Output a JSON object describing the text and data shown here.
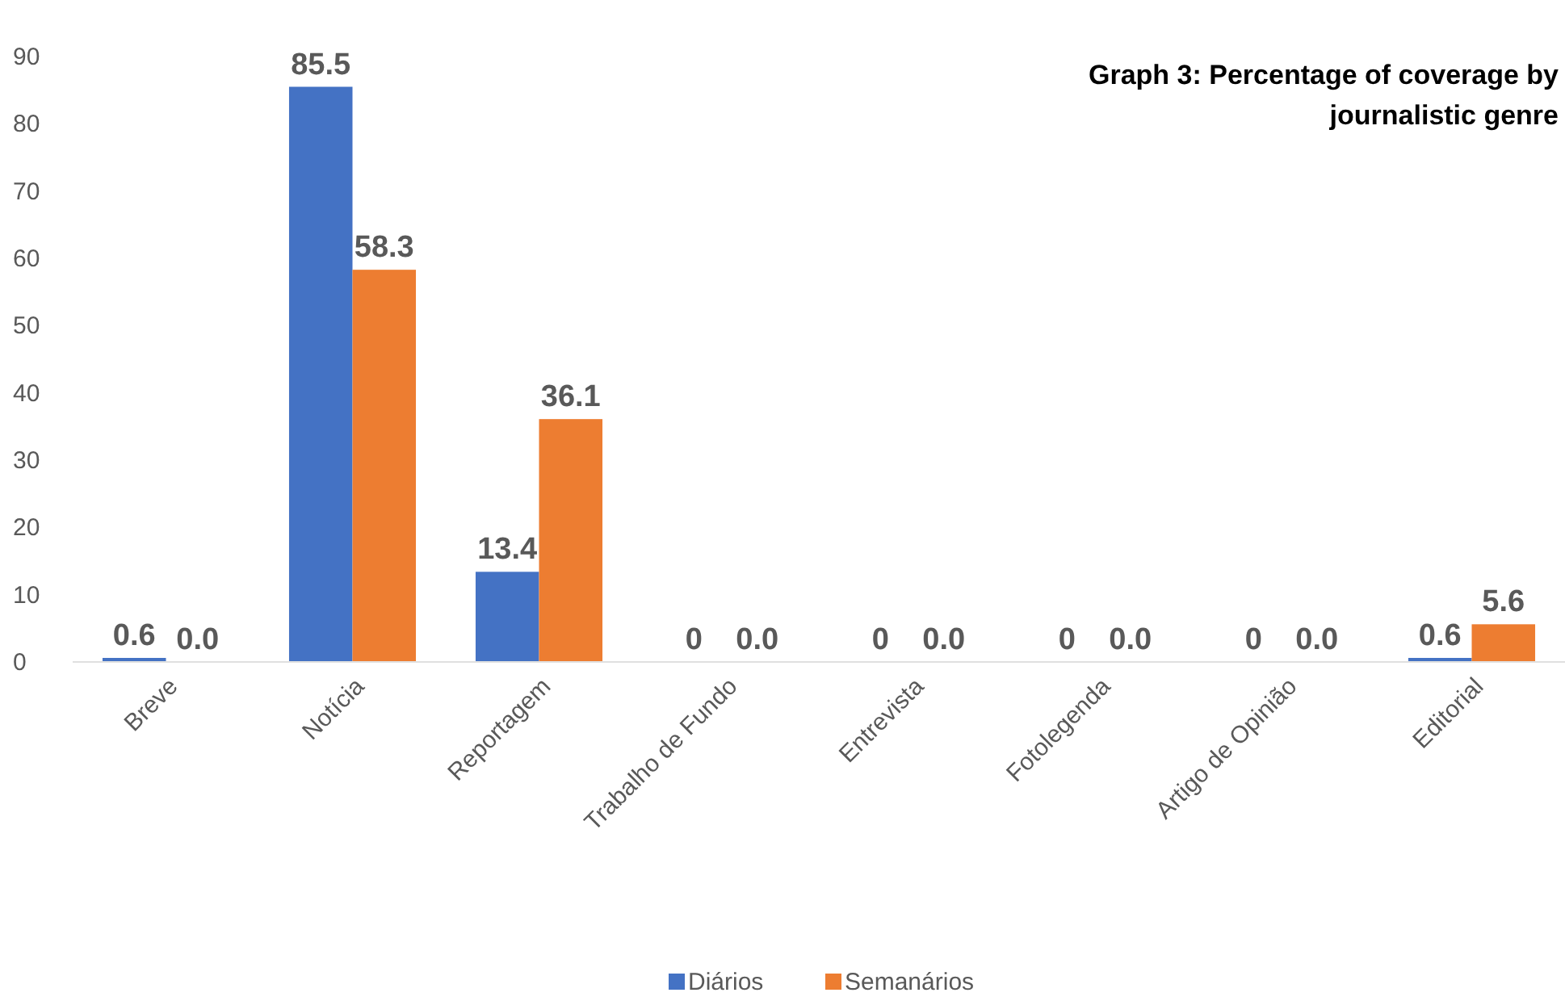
{
  "chart_data": {
    "type": "bar",
    "title": "Graph 3: Percentage of coverage by journalistic genre",
    "categories": [
      "Breve",
      "Notícia",
      "Reportagem",
      "Trabalho de Fundo",
      "Entrevista",
      "Fotolegenda",
      "Artigo de Opinião",
      "Editorial"
    ],
    "series": [
      {
        "name": "Diários",
        "color": "#4472c4",
        "values": [
          0.6,
          85.5,
          13.4,
          0,
          0,
          0,
          0,
          0.6
        ],
        "value_labels": [
          "0.6",
          "85.5",
          "13.4",
          "0",
          "0",
          "0",
          "0",
          "0.6"
        ]
      },
      {
        "name": "Semanários",
        "color": "#ed7d31",
        "values": [
          0.0,
          58.3,
          36.1,
          0.0,
          0.0,
          0.0,
          0.0,
          5.6
        ],
        "value_labels": [
          "0.0",
          "58.3",
          "36.1",
          "0.0",
          "0.0",
          "0.0",
          "0.0",
          "5.6"
        ]
      }
    ],
    "ylim": [
      0,
      90
    ],
    "yticks": [
      0,
      10,
      20,
      30,
      40,
      50,
      60,
      70,
      80,
      90
    ],
    "grid": false,
    "legend": "bottom"
  }
}
